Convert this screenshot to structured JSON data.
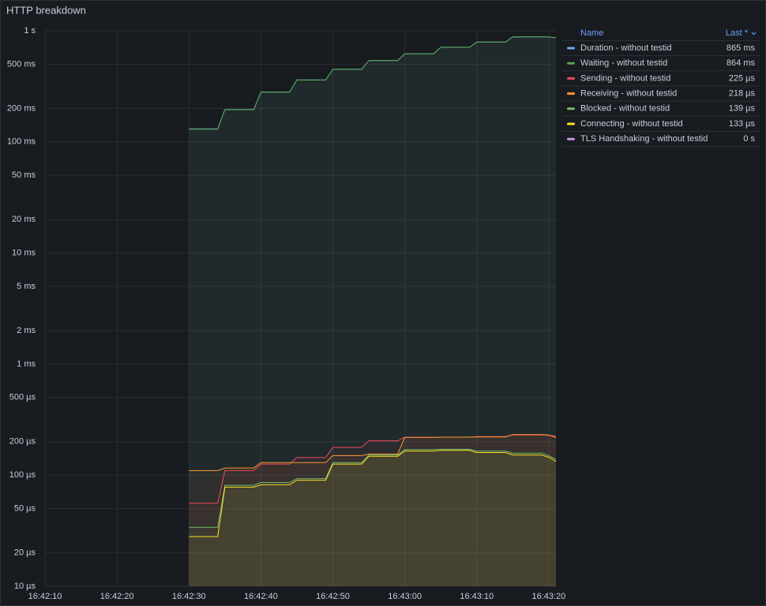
{
  "chart_data": {
    "type": "line",
    "title": "HTTP breakdown",
    "log_scale": true,
    "grid": true,
    "legend_position": "right",
    "legend_columns": [
      "Name",
      "Last *"
    ],
    "x": [
      "16:42:30",
      "16:42:34",
      "16:42:35",
      "16:42:39",
      "16:42:40",
      "16:42:44",
      "16:42:45",
      "16:42:49",
      "16:42:50",
      "16:42:54",
      "16:42:55",
      "16:42:59",
      "16:43:00",
      "16:43:04",
      "16:43:05",
      "16:43:09",
      "16:43:10",
      "16:43:14",
      "16:43:15",
      "16:43:19",
      "16:43:20",
      "16:43:21"
    ],
    "xlim": [
      "16:42:10",
      "16:43:21"
    ],
    "xticks": [
      "16:42:10",
      "16:42:20",
      "16:42:30",
      "16:42:40",
      "16:42:50",
      "16:43:00",
      "16:43:10",
      "16:43:20"
    ],
    "ylim": [
      1e-05,
      1
    ],
    "yticks": [
      {
        "value": 1,
        "label": "1 s"
      },
      {
        "value": 0.5,
        "label": "500 ms"
      },
      {
        "value": 0.2,
        "label": "200 ms"
      },
      {
        "value": 0.1,
        "label": "100 ms"
      },
      {
        "value": 0.05,
        "label": "50 ms"
      },
      {
        "value": 0.02,
        "label": "20 ms"
      },
      {
        "value": 0.01,
        "label": "10 ms"
      },
      {
        "value": 0.005,
        "label": "5 ms"
      },
      {
        "value": 0.002,
        "label": "2 ms"
      },
      {
        "value": 0.001,
        "label": "1 ms"
      },
      {
        "value": 0.0005,
        "label": "500 µs"
      },
      {
        "value": 0.0002,
        "label": "200 µs"
      },
      {
        "value": 0.0001,
        "label": "100 µs"
      },
      {
        "value": 5e-05,
        "label": "50 µs"
      },
      {
        "value": 2e-05,
        "label": "20 µs"
      },
      {
        "value": 1e-05,
        "label": "10 µs"
      }
    ],
    "series": [
      {
        "name": "Duration - without testid",
        "color": "#73a6f2",
        "last": {
          "value": 0.865,
          "label": "865 ms"
        },
        "values": [
          0.131,
          0.131,
          0.196,
          0.196,
          0.281,
          0.281,
          0.361,
          0.361,
          0.451,
          0.451,
          0.541,
          0.541,
          0.621,
          0.621,
          0.711,
          0.711,
          0.791,
          0.791,
          0.881,
          0.881,
          0.881,
          0.865
        ]
      },
      {
        "name": "Waiting - without testid",
        "color": "#56a64b",
        "last": {
          "value": 0.864,
          "label": "864 ms"
        },
        "values": [
          0.13,
          0.13,
          0.195,
          0.195,
          0.28,
          0.28,
          0.36,
          0.36,
          0.45,
          0.45,
          0.54,
          0.54,
          0.62,
          0.62,
          0.71,
          0.71,
          0.79,
          0.79,
          0.88,
          0.88,
          0.88,
          0.864
        ]
      },
      {
        "name": "Sending - without testid",
        "color": "#f2495c",
        "last": {
          "value": 0.000225,
          "label": "225 µs"
        },
        "values": [
          5.6e-05,
          5.6e-05,
          0.00011,
          0.00011,
          0.000126,
          0.000126,
          0.000144,
          0.000144,
          0.000178,
          0.000178,
          0.000204,
          0.000204,
          0.000219,
          0.000219,
          0.00022,
          0.00022,
          0.000222,
          0.000222,
          0.00023,
          0.00023,
          0.000228,
          0.000225
        ]
      },
      {
        "name": "Receiving - without testid",
        "color": "#ff9830",
        "last": {
          "value": 0.000218,
          "label": "218 µs"
        },
        "values": [
          0.00011,
          0.00011,
          0.000116,
          0.000116,
          0.00013,
          0.00013,
          0.00013,
          0.00013,
          0.00015,
          0.00015,
          0.000155,
          0.000155,
          0.000219,
          0.000219,
          0.00022,
          0.00022,
          0.000221,
          0.000221,
          0.000232,
          0.000232,
          0.00023,
          0.000218
        ]
      },
      {
        "name": "Blocked - without testid",
        "color": "#73bf69",
        "last": {
          "value": 0.000139,
          "label": "139 µs"
        },
        "values": [
          3.4e-05,
          3.4e-05,
          8.1e-05,
          8.1e-05,
          8.6e-05,
          8.6e-05,
          9.3e-05,
          9.3e-05,
          0.00013,
          0.00013,
          0.000152,
          0.000152,
          0.00017,
          0.00017,
          0.000171,
          0.000171,
          0.000165,
          0.000165,
          0.000158,
          0.000158,
          0.00015,
          0.000139
        ]
      },
      {
        "name": "Connecting - without testid",
        "color": "#fade2a",
        "last": {
          "value": 0.000133,
          "label": "133 µs"
        },
        "values": [
          2.8e-05,
          2.8e-05,
          7.8e-05,
          7.8e-05,
          8.2e-05,
          8.2e-05,
          9e-05,
          9e-05,
          0.000126,
          0.000126,
          0.000148,
          0.000148,
          0.000165,
          0.000165,
          0.000167,
          0.000167,
          0.00016,
          0.00016,
          0.000152,
          0.000152,
          0.000145,
          0.000133
        ]
      },
      {
        "name": "TLS Handshaking - without testid",
        "color": "#ca95e5",
        "last": {
          "value": 0,
          "label": "0 s"
        },
        "values": [
          null,
          null,
          null,
          null,
          null,
          null,
          null,
          null,
          null,
          null,
          null,
          null,
          null,
          null,
          null,
          null,
          null,
          null,
          null,
          null,
          null,
          null
        ]
      }
    ]
  }
}
